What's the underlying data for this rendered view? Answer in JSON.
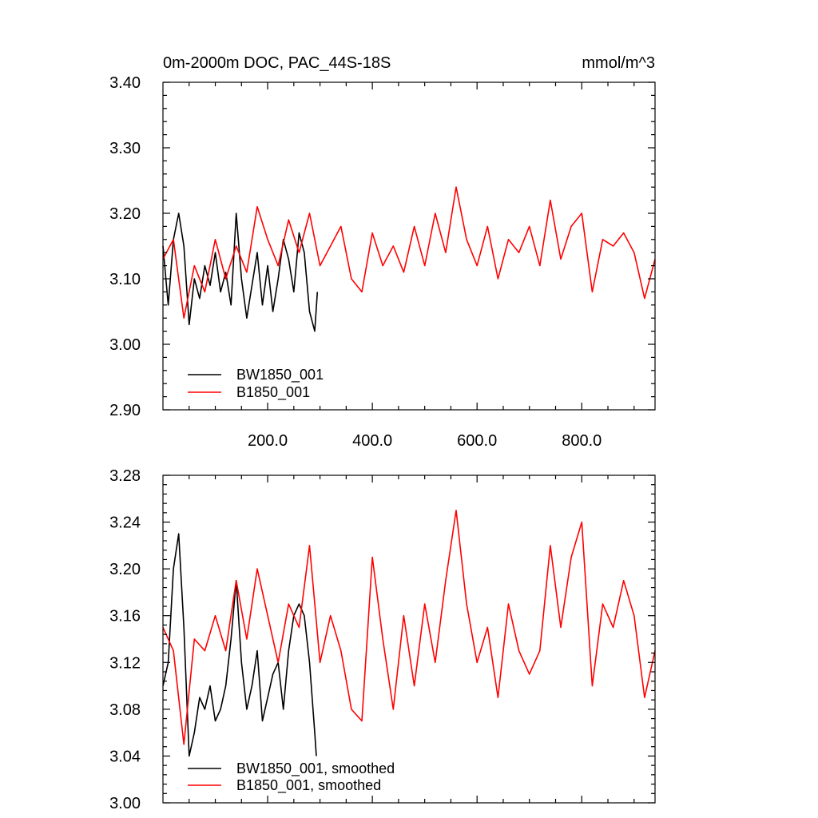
{
  "chart_data": [
    {
      "type": "line",
      "title": "0m-2000m DOC, PAC_44S-18S",
      "units": "mmol/m^3",
      "x_range": [
        0,
        940
      ],
      "ylim": [
        2.9,
        3.4
      ],
      "x_tick_values": [
        200,
        400,
        600,
        800
      ],
      "x_tick_labels": [
        "200.0",
        "400.0",
        "600.0",
        "800.0"
      ],
      "y_tick_values": [
        2.9,
        3.0,
        3.1,
        3.2,
        3.3,
        3.4
      ],
      "y_tick_labels": [
        "2.90",
        "3.00",
        "3.10",
        "3.20",
        "3.30",
        "3.40"
      ],
      "legend_position": "lower-left",
      "series": [
        {
          "name": "BW1850_001",
          "color": "#000000",
          "x": [
            0,
            10,
            20,
            30,
            40,
            50,
            60,
            70,
            80,
            90,
            100,
            110,
            120,
            130,
            140,
            150,
            160,
            170,
            180,
            190,
            200,
            210,
            220,
            230,
            240,
            250,
            260,
            270,
            280,
            290,
            295
          ],
          "values": [
            3.15,
            3.06,
            3.16,
            3.2,
            3.15,
            3.03,
            3.1,
            3.07,
            3.12,
            3.09,
            3.14,
            3.08,
            3.11,
            3.06,
            3.2,
            3.1,
            3.04,
            3.09,
            3.14,
            3.06,
            3.12,
            3.05,
            3.1,
            3.16,
            3.13,
            3.08,
            3.17,
            3.14,
            3.05,
            3.02,
            3.08
          ]
        },
        {
          "name": "B1850_001",
          "color": "#ff0000",
          "x": [
            0,
            20,
            40,
            60,
            80,
            100,
            120,
            140,
            160,
            180,
            200,
            220,
            240,
            260,
            280,
            300,
            320,
            340,
            360,
            380,
            400,
            420,
            440,
            460,
            480,
            500,
            520,
            540,
            560,
            580,
            600,
            620,
            640,
            660,
            680,
            700,
            720,
            740,
            760,
            780,
            800,
            820,
            840,
            860,
            880,
            900,
            920,
            940
          ],
          "values": [
            3.13,
            3.16,
            3.04,
            3.12,
            3.08,
            3.16,
            3.1,
            3.15,
            3.11,
            3.21,
            3.16,
            3.12,
            3.19,
            3.14,
            3.2,
            3.12,
            3.15,
            3.18,
            3.1,
            3.08,
            3.17,
            3.12,
            3.15,
            3.11,
            3.18,
            3.12,
            3.2,
            3.14,
            3.24,
            3.16,
            3.12,
            3.18,
            3.1,
            3.16,
            3.14,
            3.18,
            3.12,
            3.22,
            3.13,
            3.18,
            3.2,
            3.08,
            3.16,
            3.15,
            3.17,
            3.14,
            3.07,
            3.13
          ]
        }
      ]
    },
    {
      "type": "line",
      "x_range": [
        0,
        940
      ],
      "ylim": [
        3.0,
        3.28
      ],
      "x_tick_values": [
        200,
        400,
        600,
        800
      ],
      "y_tick_values": [
        3.0,
        3.04,
        3.08,
        3.12,
        3.16,
        3.2,
        3.24,
        3.28
      ],
      "y_tick_labels": [
        "3.00",
        "3.04",
        "3.08",
        "3.12",
        "3.16",
        "3.20",
        "3.24",
        "3.28"
      ],
      "legend_position": "lower-left",
      "series": [
        {
          "name": "BW1850_001, smoothed",
          "color": "#000000",
          "x": [
            0,
            10,
            20,
            30,
            40,
            50,
            60,
            70,
            80,
            90,
            100,
            110,
            120,
            130,
            140,
            150,
            160,
            170,
            180,
            190,
            200,
            210,
            220,
            230,
            240,
            250,
            260,
            270,
            280,
            290,
            293
          ],
          "values": [
            3.1,
            3.12,
            3.2,
            3.23,
            3.15,
            3.04,
            3.06,
            3.09,
            3.08,
            3.1,
            3.07,
            3.08,
            3.1,
            3.14,
            3.19,
            3.12,
            3.08,
            3.1,
            3.13,
            3.07,
            3.09,
            3.11,
            3.12,
            3.08,
            3.13,
            3.16,
            3.17,
            3.16,
            3.12,
            3.06,
            3.04
          ]
        },
        {
          "name": "B1850_001, smoothed",
          "color": "#ff0000",
          "x": [
            0,
            20,
            40,
            60,
            80,
            100,
            120,
            140,
            160,
            180,
            200,
            220,
            240,
            260,
            280,
            300,
            320,
            340,
            360,
            380,
            400,
            420,
            440,
            460,
            480,
            500,
            520,
            540,
            560,
            580,
            600,
            620,
            640,
            660,
            680,
            700,
            720,
            740,
            760,
            780,
            800,
            820,
            840,
            860,
            880,
            900,
            920,
            940
          ],
          "values": [
            3.15,
            3.13,
            3.05,
            3.14,
            3.13,
            3.16,
            3.13,
            3.19,
            3.14,
            3.2,
            3.16,
            3.12,
            3.17,
            3.15,
            3.22,
            3.12,
            3.16,
            3.13,
            3.08,
            3.07,
            3.21,
            3.14,
            3.08,
            3.16,
            3.1,
            3.17,
            3.12,
            3.19,
            3.25,
            3.17,
            3.12,
            3.15,
            3.09,
            3.17,
            3.13,
            3.11,
            3.13,
            3.22,
            3.15,
            3.21,
            3.24,
            3.1,
            3.17,
            3.15,
            3.19,
            3.16,
            3.09,
            3.13
          ]
        }
      ]
    }
  ]
}
